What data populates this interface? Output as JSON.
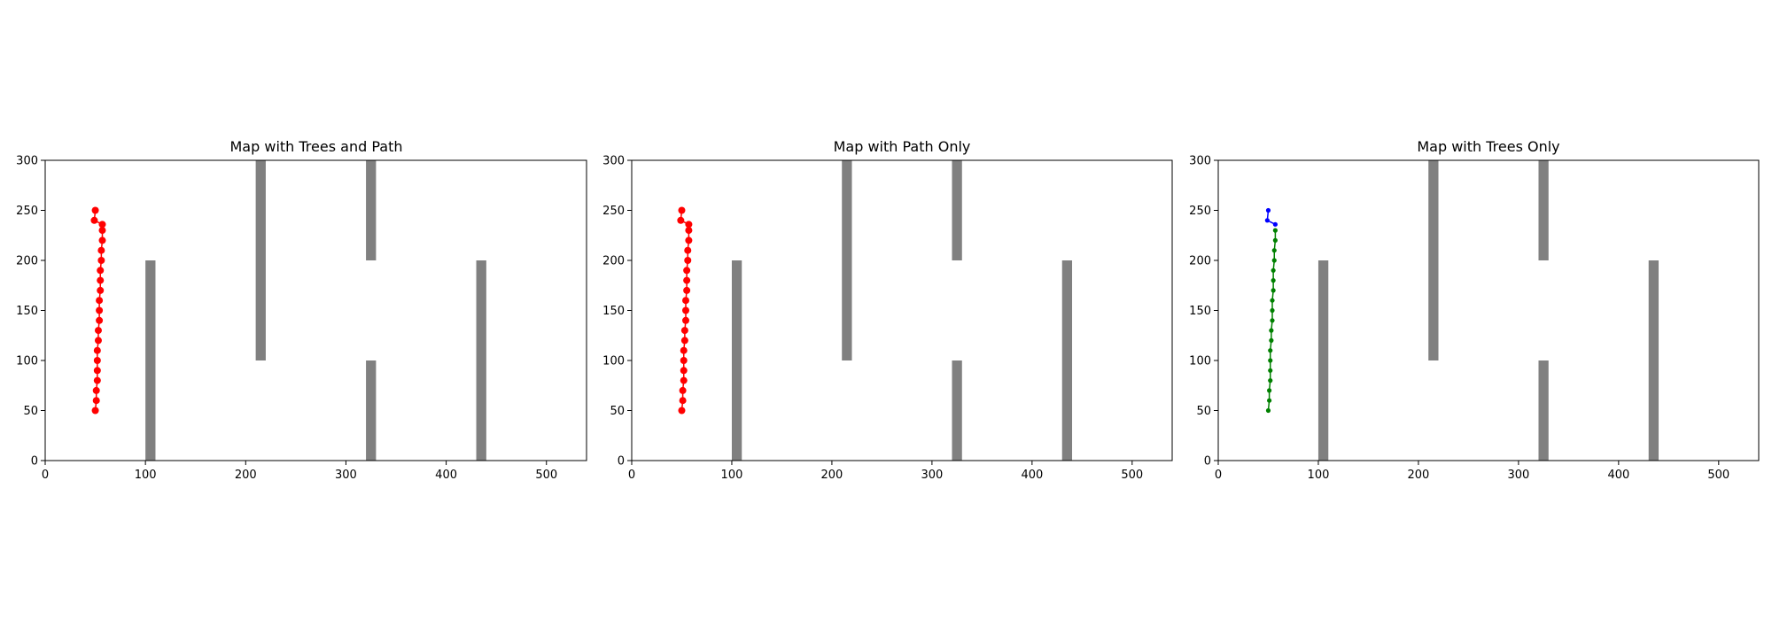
{
  "chart_data": [
    {
      "type": "scatter",
      "title": "Map with Trees and Path",
      "xlabel": "",
      "ylabel": "",
      "xlim": [
        0,
        540
      ],
      "ylim": [
        0,
        300
      ],
      "xticks": [
        0,
        100,
        200,
        300,
        400,
        500
      ],
      "yticks": [
        0,
        50,
        100,
        150,
        200,
        250,
        300
      ],
      "grid": false,
      "obstacles": [
        {
          "x": [
            100,
            110
          ],
          "y": [
            0,
            200
          ]
        },
        {
          "x": [
            210,
            220
          ],
          "y": [
            100,
            300
          ]
        },
        {
          "x": [
            320,
            330
          ],
          "y": [
            200,
            300
          ]
        },
        {
          "x": [
            320,
            330
          ],
          "y": [
            0,
            100
          ]
        },
        {
          "x": [
            430,
            440
          ],
          "y": [
            0,
            200
          ]
        }
      ],
      "series": [
        {
          "color": "#ff0000",
          "marker_size": 4,
          "points": [
            [
              50,
              50
            ],
            [
              51,
              60
            ],
            [
              51,
              70
            ],
            [
              52,
              80
            ],
            [
              52,
              90
            ],
            [
              52,
              100
            ],
            [
              52,
              110
            ],
            [
              53,
              120
            ],
            [
              53,
              130
            ],
            [
              54,
              140
            ],
            [
              54,
              150
            ],
            [
              54,
              160
            ],
            [
              55,
              170
            ],
            [
              55,
              180
            ],
            [
              55,
              190
            ],
            [
              56,
              200
            ],
            [
              56,
              210
            ],
            [
              57,
              220
            ],
            [
              57,
              230
            ],
            [
              57,
              236
            ],
            [
              49,
              240
            ],
            [
              50,
              250
            ]
          ]
        }
      ]
    },
    {
      "type": "scatter",
      "title": "Map with Path Only",
      "xlabel": "",
      "ylabel": "",
      "xlim": [
        0,
        540
      ],
      "ylim": [
        0,
        300
      ],
      "xticks": [
        0,
        100,
        200,
        300,
        400,
        500
      ],
      "yticks": [
        0,
        50,
        100,
        150,
        200,
        250,
        300
      ],
      "grid": false,
      "obstacles": [
        {
          "x": [
            100,
            110
          ],
          "y": [
            0,
            200
          ]
        },
        {
          "x": [
            210,
            220
          ],
          "y": [
            100,
            300
          ]
        },
        {
          "x": [
            320,
            330
          ],
          "y": [
            200,
            300
          ]
        },
        {
          "x": [
            320,
            330
          ],
          "y": [
            0,
            100
          ]
        },
        {
          "x": [
            430,
            440
          ],
          "y": [
            0,
            200
          ]
        }
      ],
      "series": [
        {
          "color": "#ff0000",
          "marker_size": 4,
          "points": [
            [
              50,
              50
            ],
            [
              51,
              60
            ],
            [
              51,
              70
            ],
            [
              52,
              80
            ],
            [
              52,
              90
            ],
            [
              52,
              100
            ],
            [
              52,
              110
            ],
            [
              53,
              120
            ],
            [
              53,
              130
            ],
            [
              54,
              140
            ],
            [
              54,
              150
            ],
            [
              54,
              160
            ],
            [
              55,
              170
            ],
            [
              55,
              180
            ],
            [
              55,
              190
            ],
            [
              56,
              200
            ],
            [
              56,
              210
            ],
            [
              57,
              220
            ],
            [
              57,
              230
            ],
            [
              57,
              236
            ],
            [
              49,
              240
            ],
            [
              50,
              250
            ]
          ]
        }
      ]
    },
    {
      "type": "line",
      "title": "Map with Trees Only",
      "xlabel": "",
      "ylabel": "",
      "xlim": [
        0,
        540
      ],
      "ylim": [
        0,
        300
      ],
      "xticks": [
        0,
        100,
        200,
        300,
        400,
        500
      ],
      "yticks": [
        0,
        50,
        100,
        150,
        200,
        250,
        300
      ],
      "grid": false,
      "obstacles": [
        {
          "x": [
            100,
            110
          ],
          "y": [
            0,
            200
          ]
        },
        {
          "x": [
            210,
            220
          ],
          "y": [
            100,
            300
          ]
        },
        {
          "x": [
            320,
            330
          ],
          "y": [
            200,
            300
          ]
        },
        {
          "x": [
            320,
            330
          ],
          "y": [
            0,
            100
          ]
        },
        {
          "x": [
            430,
            440
          ],
          "y": [
            0,
            200
          ]
        }
      ],
      "series": [
        {
          "color": "#0000ff",
          "marker_size": 2.6,
          "points": [
            [
              50,
              250
            ],
            [
              49,
              240
            ],
            [
              57,
              236
            ]
          ]
        },
        {
          "color": "#008000",
          "marker_size": 2.6,
          "points": [
            [
              57,
              230
            ],
            [
              57,
              220
            ],
            [
              56,
              210
            ],
            [
              56,
              200
            ],
            [
              55,
              190
            ],
            [
              55,
              180
            ],
            [
              55,
              170
            ],
            [
              54,
              160
            ],
            [
              54,
              150
            ],
            [
              54,
              140
            ],
            [
              53,
              130
            ],
            [
              53,
              120
            ],
            [
              52,
              110
            ],
            [
              52,
              100
            ],
            [
              52,
              90
            ],
            [
              52,
              80
            ],
            [
              51,
              70
            ],
            [
              51,
              60
            ],
            [
              50,
              50
            ]
          ]
        }
      ]
    }
  ]
}
